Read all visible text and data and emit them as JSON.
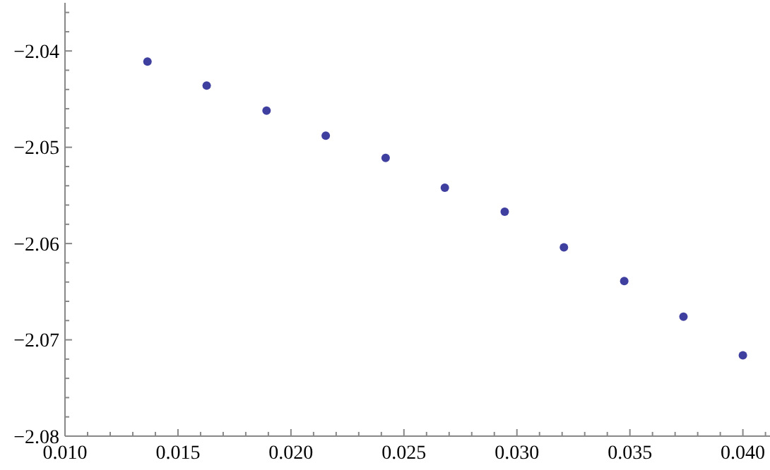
{
  "chart_data": {
    "type": "scatter",
    "marker": "circle",
    "grid": false,
    "x": [
      0.01365,
      0.01627,
      0.01892,
      0.02154,
      0.02419,
      0.02681,
      0.02946,
      0.03208,
      0.03475,
      0.03737,
      0.04
    ],
    "series": [
      {
        "color": "#3f3f9f",
        "values": [
          -2.0411,
          -2.0436,
          -2.0462,
          -2.0488,
          -2.0511,
          -2.0542,
          -2.0567,
          -2.0604,
          -2.0639,
          -2.0676,
          -2.0716
        ]
      }
    ],
    "xlim": [
      0.01,
      0.0412
    ],
    "ylim": [
      -2.08,
      -2.035
    ],
    "xticks": [
      "0.010",
      {
        "value": 0.011,
        "label": null
      },
      {
        "value": 0.012,
        "label": null
      },
      {
        "value": 0.013,
        "label": null
      },
      {
        "value": 0.014,
        "label": null
      },
      {
        "value": 0.015,
        "label": "0.015"
      },
      {
        "value": 0.016,
        "label": null
      },
      {
        "value": 0.017,
        "label": null
      },
      {
        "value": 0.018,
        "label": null
      },
      {
        "value": 0.019,
        "label": null
      },
      {
        "value": 0.02,
        "label": "0.020"
      },
      {
        "value": 0.021,
        "label": null
      },
      {
        "value": 0.022,
        "label": null
      },
      {
        "value": 0.023,
        "label": null
      },
      {
        "value": 0.024,
        "label": null
      },
      {
        "value": 0.025,
        "label": "0.025"
      },
      {
        "value": 0.026,
        "label": null
      },
      {
        "value": 0.027,
        "label": null
      },
      {
        "value": 0.028,
        "label": null
      },
      {
        "value": 0.029,
        "label": null
      },
      {
        "value": 0.03,
        "label": "0.030"
      },
      {
        "value": 0.031,
        "label": null
      },
      {
        "value": 0.032,
        "label": null
      },
      {
        "value": 0.033,
        "label": null
      },
      {
        "value": 0.034,
        "label": null
      },
      {
        "value": 0.035,
        "label": "0.035"
      },
      {
        "value": 0.036,
        "label": null
      },
      {
        "value": 0.037,
        "label": null
      },
      {
        "value": 0.038,
        "label": null
      },
      {
        "value": 0.039,
        "label": null
      },
      {
        "value": 0.04,
        "label": "0.040"
      },
      {
        "value": 0.041,
        "label": null
      }
    ],
    "yticks": [
      {
        "value": -2.08,
        "label": "−2.08"
      },
      {
        "value": -2.078,
        "label": null
      },
      {
        "value": -2.076,
        "label": null
      },
      {
        "value": -2.074,
        "label": null
      },
      {
        "value": -2.072,
        "label": null
      },
      {
        "value": -2.07,
        "label": "−2.07"
      },
      {
        "value": -2.068,
        "label": null
      },
      {
        "value": -2.066,
        "label": null
      },
      {
        "value": -2.064,
        "label": null
      },
      {
        "value": -2.062,
        "label": null
      },
      {
        "value": -2.06,
        "label": "−2.06"
      },
      {
        "value": -2.058,
        "label": null
      },
      {
        "value": -2.056,
        "label": null
      },
      {
        "value": -2.054,
        "label": null
      },
      {
        "value": -2.052,
        "label": null
      },
      {
        "value": -2.05,
        "label": "−2.05"
      },
      {
        "value": -2.048,
        "label": null
      },
      {
        "value": -2.046,
        "label": null
      },
      {
        "value": -2.044,
        "label": null
      },
      {
        "value": -2.042,
        "label": null
      },
      {
        "value": -2.04,
        "label": "−2.04"
      },
      {
        "value": -2.038,
        "label": null
      },
      {
        "value": -2.036,
        "label": null
      }
    ]
  }
}
